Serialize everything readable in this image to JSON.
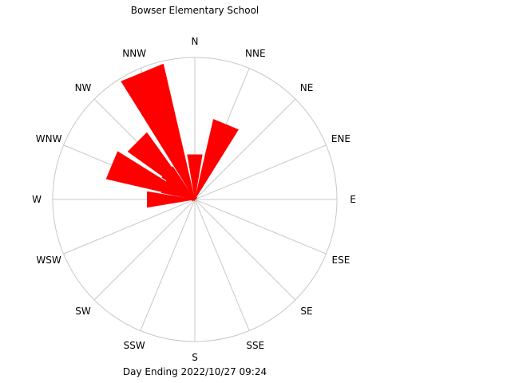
{
  "chart_data": {
    "type": "wind-rose",
    "title": "Bowser Elementary School",
    "footer": "Day Ending 2022/10/27 09:24",
    "directions": [
      "N",
      "NNE",
      "NE",
      "ENE",
      "E",
      "ESE",
      "SE",
      "SSE",
      "S",
      "SSW",
      "SW",
      "WSW",
      "W",
      "WNW",
      "NW",
      "NNW"
    ],
    "values": [
      0.32,
      0.58,
      0.02,
      0.01,
      0.0,
      0.0,
      0.0,
      0.0,
      0.0,
      0.01,
      0.01,
      0.02,
      0.34,
      0.64,
      0.58,
      0.98
    ],
    "inner_bins": {
      "NW": 0.28,
      "WNW": 0.24
    },
    "rmax": 1.0,
    "colors": {
      "bars": "#ff0000",
      "grid": "#c8c8c8"
    }
  }
}
